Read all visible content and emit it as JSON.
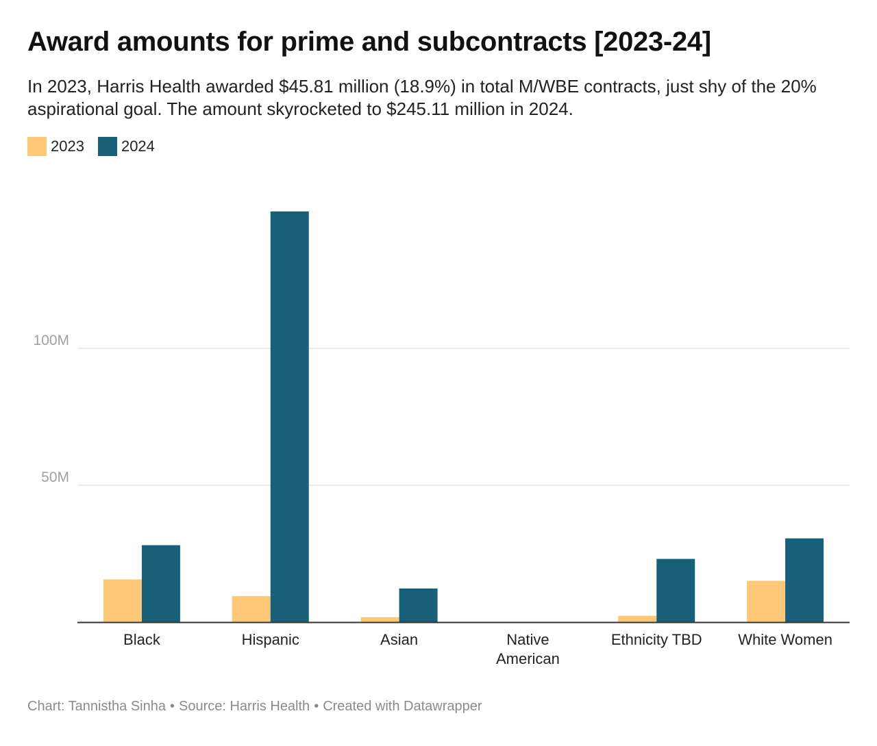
{
  "title": "Award amounts for prime and subcontracts [2023-24]",
  "subtitle": "In 2023, Harris Health awarded $45.81 million (18.9%) in total M/WBE contracts, just shy of the 20% aspirational goal. The amount skyrocketed to $245.11 million in 2024.",
  "footer": {
    "credit": "Chart: Tannistha Sinha",
    "source": "Source: Harris Health",
    "tool": "Created with Datawrapper",
    "separator": "•"
  },
  "colors": {
    "2023": "#fdc979",
    "2024": "#18607a",
    "grid": "#e2e2e2",
    "axis": "#333333",
    "tick": "#a0a0a0"
  },
  "chart_data": {
    "type": "bar",
    "categories": [
      "Black",
      "Hispanic",
      "Asian",
      "Native\nAmerican",
      "Ethnicity TBD",
      "White Women"
    ],
    "series": [
      {
        "name": "2023",
        "color": "#fdc979",
        "values": [
          15.6,
          9.5,
          1.8,
          0,
          2.3,
          15.1
        ]
      },
      {
        "name": "2024",
        "color": "#18607a",
        "values": [
          28.1,
          150.0,
          12.3,
          0,
          23.1,
          30.6
        ]
      }
    ],
    "yticks": [
      {
        "value": 50,
        "label": "50M"
      },
      {
        "value": 100,
        "label": "100M"
      }
    ],
    "ylim": [
      0,
      150
    ],
    "grid": true,
    "legend_position": "top-left",
    "xlabel": "",
    "ylabel": ""
  }
}
